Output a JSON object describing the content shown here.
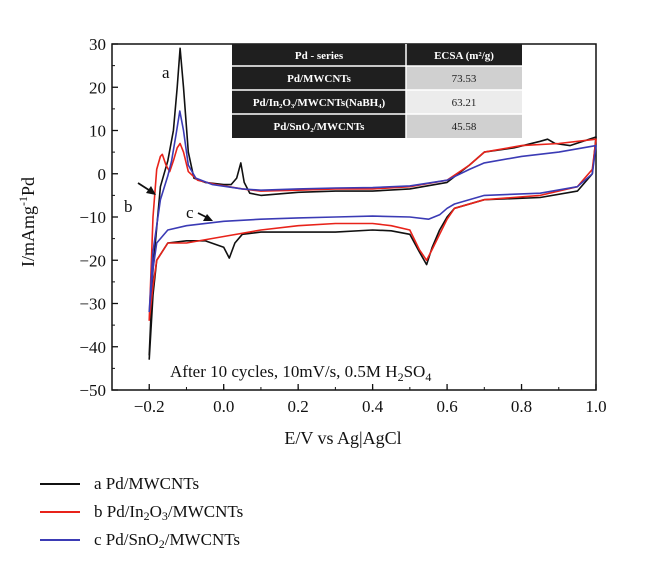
{
  "chart_data": {
    "type": "line",
    "xlabel": "E/V vs Ag|AgCl",
    "ylabel": "I/mAmg⁻¹Pd",
    "xlim": [
      -0.3,
      1.0
    ],
    "ylim": [
      -50,
      30
    ],
    "x_ticks": [
      "−0.2",
      "0.0",
      "0.2",
      "0.4",
      "0.6",
      "0.8",
      "1.0"
    ],
    "y_ticks": [
      "−50",
      "−40",
      "−30",
      "−20",
      "−10",
      "0",
      "10",
      "20",
      "30"
    ],
    "grid": false,
    "legend_position": "bottom",
    "annotation": "After 10 cycles, 10mV/s, 0.5M H₂SO₄",
    "curve_labels": [
      "a",
      "b",
      "c"
    ],
    "series": [
      {
        "name": "a Pd/MWCNTs",
        "color": "#111111",
        "anodic": [
          [
            -0.2,
            -42
          ],
          [
            -0.19,
            -22
          ],
          [
            -0.17,
            -3
          ],
          [
            -0.15,
            3
          ],
          [
            -0.135,
            10
          ],
          [
            -0.125,
            20
          ],
          [
            -0.117,
            29
          ],
          [
            -0.108,
            20
          ],
          [
            -0.095,
            5
          ],
          [
            -0.08,
            -1
          ],
          [
            -0.05,
            -2
          ],
          [
            0.0,
            -2.5
          ],
          [
            0.02,
            -2.5
          ],
          [
            0.035,
            -1
          ],
          [
            0.046,
            2.5
          ],
          [
            0.055,
            -2
          ],
          [
            0.07,
            -4.5
          ],
          [
            0.1,
            -5
          ],
          [
            0.2,
            -4.3
          ],
          [
            0.3,
            -4
          ],
          [
            0.4,
            -4
          ],
          [
            0.5,
            -3.5
          ],
          [
            0.6,
            -2
          ],
          [
            0.66,
            2
          ],
          [
            0.7,
            5
          ],
          [
            0.78,
            6
          ],
          [
            0.85,
            7.5
          ],
          [
            0.87,
            8
          ],
          [
            0.89,
            7
          ],
          [
            0.93,
            6.5
          ],
          [
            1.0,
            8.5
          ]
        ],
        "cathodic": [
          [
            1.0,
            8.5
          ],
          [
            0.99,
            0
          ],
          [
            0.95,
            -4
          ],
          [
            0.85,
            -5.5
          ],
          [
            0.7,
            -6
          ],
          [
            0.62,
            -8
          ],
          [
            0.6,
            -10
          ],
          [
            0.58,
            -13
          ],
          [
            0.56,
            -17
          ],
          [
            0.545,
            -21
          ],
          [
            0.525,
            -18
          ],
          [
            0.5,
            -14
          ],
          [
            0.45,
            -13.2
          ],
          [
            0.4,
            -13
          ],
          [
            0.3,
            -13.5
          ],
          [
            0.2,
            -13.5
          ],
          [
            0.1,
            -13.5
          ],
          [
            0.05,
            -14
          ],
          [
            0.03,
            -16
          ],
          [
            0.015,
            -19.5
          ],
          [
            0.0,
            -17
          ],
          [
            -0.05,
            -15.5
          ],
          [
            -0.1,
            -15.5
          ],
          [
            -0.15,
            -16
          ],
          [
            -0.18,
            -20
          ],
          [
            -0.19,
            -28
          ],
          [
            -0.2,
            -43
          ]
        ]
      },
      {
        "name": "b Pd/In₂O₃/MWCNTs",
        "color": "#e8231a",
        "anodic": [
          [
            -0.2,
            -34
          ],
          [
            -0.19,
            -10
          ],
          [
            -0.18,
            1
          ],
          [
            -0.17,
            4
          ],
          [
            -0.165,
            4.5
          ],
          [
            -0.155,
            2
          ],
          [
            -0.145,
            0.5
          ],
          [
            -0.135,
            3
          ],
          [
            -0.125,
            6
          ],
          [
            -0.117,
            7
          ],
          [
            -0.108,
            5
          ],
          [
            -0.095,
            0.5
          ],
          [
            -0.07,
            -1.5
          ],
          [
            -0.02,
            -2.5
          ],
          [
            0.05,
            -3.5
          ],
          [
            0.1,
            -4
          ],
          [
            0.2,
            -3.8
          ],
          [
            0.3,
            -3.5
          ],
          [
            0.4,
            -3.5
          ],
          [
            0.5,
            -3
          ],
          [
            0.6,
            -1.5
          ],
          [
            0.66,
            2
          ],
          [
            0.7,
            5
          ],
          [
            0.8,
            6.5
          ],
          [
            0.9,
            7
          ],
          [
            1.0,
            8
          ]
        ],
        "cathodic": [
          [
            1.0,
            8
          ],
          [
            0.99,
            1
          ],
          [
            0.95,
            -3
          ],
          [
            0.85,
            -5
          ],
          [
            0.7,
            -6
          ],
          [
            0.62,
            -8
          ],
          [
            0.6,
            -10.5
          ],
          [
            0.58,
            -14
          ],
          [
            0.56,
            -17.5
          ],
          [
            0.545,
            -20
          ],
          [
            0.525,
            -17.5
          ],
          [
            0.5,
            -13
          ],
          [
            0.45,
            -12
          ],
          [
            0.4,
            -11.5
          ],
          [
            0.3,
            -11.5
          ],
          [
            0.2,
            -12
          ],
          [
            0.1,
            -13
          ],
          [
            0.0,
            -14.5
          ],
          [
            -0.1,
            -16
          ],
          [
            -0.15,
            -16
          ],
          [
            -0.18,
            -20
          ],
          [
            -0.19,
            -26
          ],
          [
            -0.2,
            -34
          ]
        ]
      },
      {
        "name": "c Pd/SnO₂/MWCNTs",
        "color": "#3b3bb5",
        "anodic": [
          [
            -0.2,
            -32
          ],
          [
            -0.19,
            -18
          ],
          [
            -0.17,
            -6
          ],
          [
            -0.15,
            -0.5
          ],
          [
            -0.14,
            3
          ],
          [
            -0.128,
            9
          ],
          [
            -0.118,
            14.5
          ],
          [
            -0.108,
            10
          ],
          [
            -0.095,
            2
          ],
          [
            -0.075,
            -1
          ],
          [
            -0.03,
            -2.5
          ],
          [
            0.05,
            -3.5
          ],
          [
            0.1,
            -3.8
          ],
          [
            0.2,
            -3.5
          ],
          [
            0.3,
            -3.3
          ],
          [
            0.4,
            -3.2
          ],
          [
            0.5,
            -2.8
          ],
          [
            0.6,
            -1.5
          ],
          [
            0.66,
            1
          ],
          [
            0.7,
            2.5
          ],
          [
            0.8,
            4
          ],
          [
            0.9,
            5
          ],
          [
            1.0,
            6.5
          ]
        ],
        "cathodic": [
          [
            1.0,
            6.5
          ],
          [
            0.99,
            0
          ],
          [
            0.95,
            -3
          ],
          [
            0.85,
            -4.5
          ],
          [
            0.7,
            -5
          ],
          [
            0.62,
            -7
          ],
          [
            0.6,
            -8
          ],
          [
            0.58,
            -9.5
          ],
          [
            0.55,
            -10.5
          ],
          [
            0.5,
            -10
          ],
          [
            0.4,
            -9.8
          ],
          [
            0.3,
            -10
          ],
          [
            0.2,
            -10.2
          ],
          [
            0.1,
            -10.5
          ],
          [
            0.0,
            -11
          ],
          [
            -0.1,
            -12
          ],
          [
            -0.15,
            -13
          ],
          [
            -0.18,
            -16
          ],
          [
            -0.19,
            -22
          ],
          [
            -0.2,
            -32
          ]
        ]
      }
    ],
    "inset_table": {
      "headers": [
        "Pd - series",
        "ECSA (m²/g)"
      ],
      "rows": [
        [
          "Pd/MWCNTs",
          "73.53"
        ],
        [
          "Pd/In₂O₃/MWCNTs(NaBH₄)",
          "63.21"
        ],
        [
          "Pd/SnO₂/MWCNTs",
          "45.58"
        ]
      ]
    }
  },
  "legend": [
    {
      "text": "a Pd/MWCNTs",
      "color": "#111111"
    },
    {
      "text": "b Pd/In₂O₃/MWCNTs",
      "color": "#e8231a"
    },
    {
      "text": "c Pd/SnO₂/MWCNTs",
      "color": "#3b3bb5"
    }
  ]
}
